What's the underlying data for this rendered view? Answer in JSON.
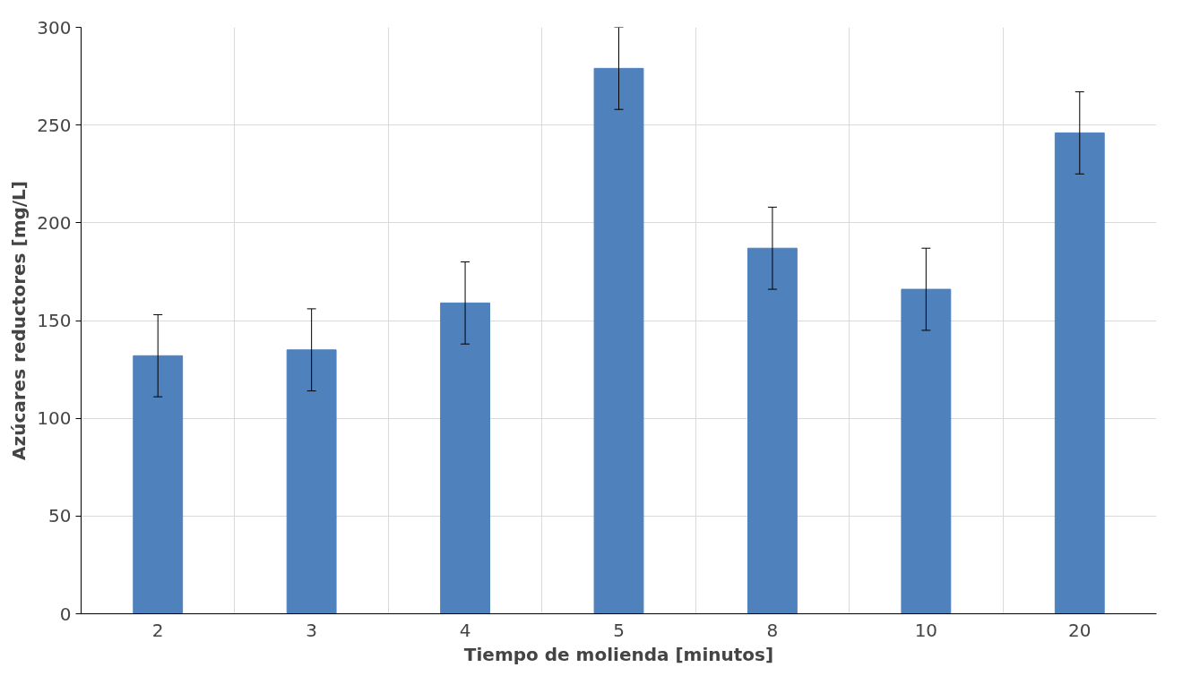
{
  "chart_data": {
    "type": "bar",
    "xlabel": "Tiempo de molienda [minutos]",
    "ylabel": "Azúcares reductores [mg/L]",
    "categories": [
      "2",
      "3",
      "4",
      "5",
      "8",
      "10",
      "20"
    ],
    "values": [
      132,
      135,
      159,
      279,
      187,
      166,
      246
    ],
    "errors": [
      21,
      21,
      21,
      21,
      21,
      21,
      21
    ],
    "color": "#4f81bd",
    "ylim": [
      0,
      300
    ],
    "yticks": [
      0,
      50,
      100,
      150,
      200,
      250,
      300
    ],
    "grid": true
  }
}
